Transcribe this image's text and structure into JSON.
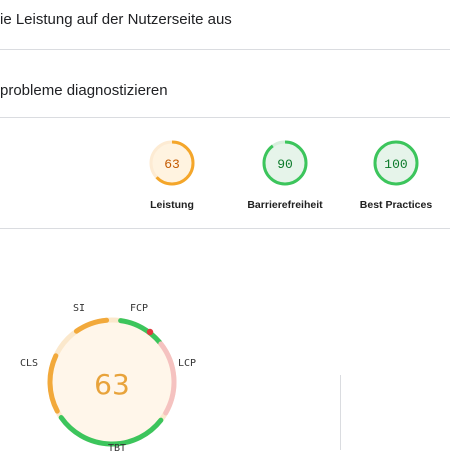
{
  "header": {
    "title": "ie Leistung auf der Nutzerseite aus"
  },
  "section": {
    "title": "probleme diagnostizieren"
  },
  "scores": [
    {
      "label": "Leistung",
      "value": "63",
      "fraction": 0.63,
      "color": "#f4a62a",
      "text_color": "#c45a00",
      "bg": "#fff3e0"
    },
    {
      "label": "Barrierefreiheit",
      "value": "90",
      "fraction": 0.9,
      "color": "#3cc55c",
      "text_color": "#0c7a2a",
      "bg": "#e6f4ea"
    },
    {
      "label": "Best Practices",
      "value": "100",
      "fraction": 1.0,
      "color": "#3cc55c",
      "text_color": "#0c7a2a",
      "bg": "#e6f4ea"
    }
  ],
  "performance": {
    "score": "63",
    "score_color": "#e8a33b",
    "metrics": [
      {
        "name": "SI",
        "color": "#f2a93b"
      },
      {
        "name": "FCP",
        "color": "#3cc55c"
      },
      {
        "name": "LCP",
        "color": "#f5c2c0"
      },
      {
        "name": "TBT",
        "color": "#3cc55c"
      },
      {
        "name": "CLS",
        "color": "#f2a93b"
      }
    ]
  }
}
